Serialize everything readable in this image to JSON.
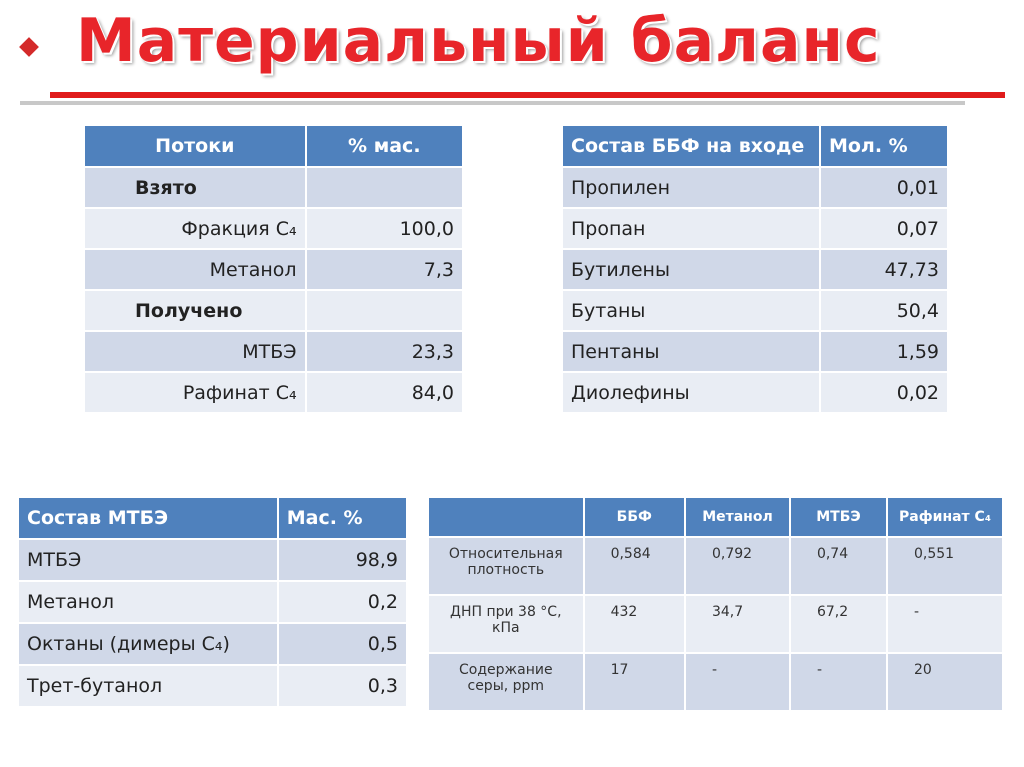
{
  "header": {
    "title": "Материальный баланс"
  },
  "table1": {
    "columns": [
      "Потоки",
      "% мас."
    ],
    "rows": [
      [
        "Взято"
      ],
      [
        "Фракция C₄",
        "100,0"
      ],
      [
        "Метанол",
        "7,3"
      ],
      [
        "Получено"
      ],
      [
        "МТБЭ",
        "23,3"
      ],
      [
        "Рафинат C₄",
        "84,0"
      ]
    ]
  },
  "table2": {
    "columns": [
      "Состав ББФ на входе",
      "Мол. %"
    ],
    "rows": [
      [
        "Пропилен",
        "0,01"
      ],
      [
        "Пропан",
        "0,07"
      ],
      [
        "Бутилены",
        "47,73"
      ],
      [
        "Бутаны",
        "50,4"
      ],
      [
        "Пентаны",
        "1,59"
      ],
      [
        "Диолефины",
        "0,02"
      ]
    ]
  },
  "table3": {
    "columns": [
      "Состав МТБЭ",
      "Мас. %"
    ],
    "rows": [
      [
        "МТБЭ",
        "98,9"
      ],
      [
        "Метанол",
        "0,2"
      ],
      [
        "Октаны (димеры C₄)",
        "0,5"
      ],
      [
        "Трет-бутанол",
        "0,3"
      ]
    ]
  },
  "table4": {
    "columns": [
      "ББФ",
      "Метанол",
      "МТБЭ",
      "Рафинат C₄"
    ],
    "rows": [
      [
        "Относительная плотность",
        "0,584",
        "0,792",
        "0,74",
        "0,551"
      ],
      [
        "ДНП при 38 °С, кПа",
        "432",
        "34,7",
        "67,2",
        "-"
      ],
      [
        "Содержание серы, ppm",
        "17",
        "-",
        "-",
        "20"
      ]
    ]
  }
}
